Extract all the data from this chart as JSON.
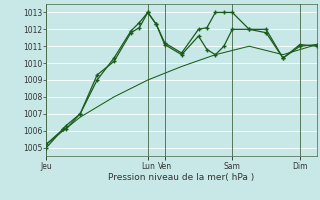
{
  "xlabel": "Pression niveau de la mer( hPa )",
  "bg_color": "#c8e8e8",
  "grid_color": "#b8d8d8",
  "line_color": "#1a5c1a",
  "ylim": [
    1004.5,
    1013.5
  ],
  "yticks": [
    1005,
    1006,
    1007,
    1008,
    1009,
    1010,
    1011,
    1012,
    1013
  ],
  "xlim": [
    0,
    96
  ],
  "day_labels": [
    "Jeu",
    "Lun",
    "Ven",
    "Sam",
    "Dim"
  ],
  "day_positions": [
    0,
    36,
    42,
    66,
    90
  ],
  "vline_color": "#557755",
  "series1_x": [
    0,
    6,
    7,
    12,
    18,
    24,
    30,
    33,
    36,
    39,
    42,
    48,
    54,
    57,
    60,
    63,
    66,
    72,
    78,
    84,
    90,
    96
  ],
  "series1_y": [
    1005.2,
    1006.1,
    1006.1,
    1007.0,
    1009.3,
    1010.1,
    1011.8,
    1012.1,
    1013.0,
    1012.3,
    1011.2,
    1010.6,
    1012.0,
    1012.1,
    1013.0,
    1013.0,
    1013.0,
    1012.0,
    1011.8,
    1010.3,
    1011.0,
    1011.1
  ],
  "series2_x": [
    0,
    6,
    7,
    12,
    18,
    24,
    30,
    33,
    36,
    39,
    42,
    48,
    54,
    57,
    60,
    63,
    66,
    72,
    78,
    84,
    90,
    96
  ],
  "series2_y": [
    1005.0,
    1006.1,
    1006.3,
    1007.0,
    1009.0,
    1010.3,
    1011.9,
    1012.4,
    1013.0,
    1012.3,
    1011.1,
    1010.5,
    1011.6,
    1010.8,
    1010.5,
    1011.0,
    1012.0,
    1012.0,
    1012.0,
    1010.3,
    1011.1,
    1011.0
  ],
  "series3_x": [
    0,
    12,
    24,
    36,
    48,
    60,
    72,
    84,
    96
  ],
  "series3_y": [
    1005.2,
    1006.8,
    1008.0,
    1009.0,
    1009.8,
    1010.5,
    1011.0,
    1010.5,
    1011.1
  ]
}
